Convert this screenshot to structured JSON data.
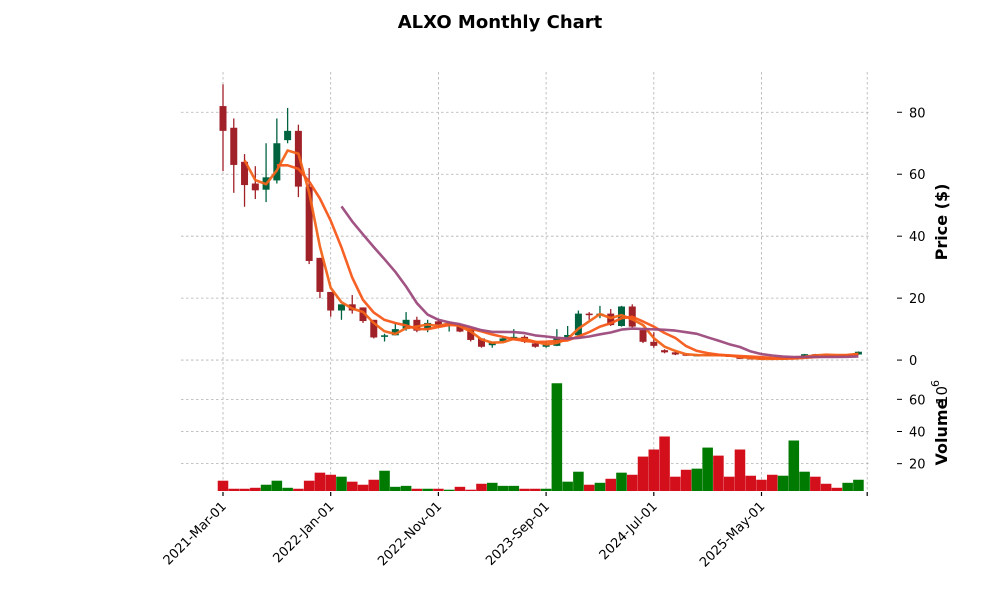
{
  "chart_data": {
    "type": "candlestick",
    "title": "ALXO Monthly Chart",
    "ylabel": "Price ($)",
    "volume_label": "Volume",
    "volume_scale_base": "10",
    "volume_scale_exp": "6",
    "start_month": "2021-03",
    "x_tick_labels": [
      "2021-Mar-01",
      "2022-Jan-01",
      "2022-Nov-01",
      "2023-Sep-01",
      "2024-Jul-01",
      "2025-May-01",
      ""
    ],
    "x_tick_indices": [
      0,
      10,
      20,
      30,
      40,
      50,
      60
    ],
    "price_ylim": [
      -3.2,
      93
    ],
    "price_yticks": [
      0,
      20,
      40,
      60,
      80
    ],
    "volume_ylim": [
      3,
      77
    ],
    "volume_yticks": [
      20,
      40,
      60
    ],
    "moving_averages": [
      {
        "window": 3,
        "color": "#f26419"
      },
      {
        "window": 6,
        "color": "#f7581a"
      },
      {
        "window": 12,
        "color": "#9c4a7c"
      }
    ],
    "colors": {
      "up": "#006340",
      "down": "#a02128",
      "vol_up": "#007a00",
      "vol_down": "#d40f1c"
    },
    "ohlc": [
      [
        82,
        89,
        61,
        74
      ],
      [
        75,
        78,
        54,
        63
      ],
      [
        64,
        66.5,
        49.5,
        56.5
      ],
      [
        57,
        62.6,
        52,
        54.8
      ],
      [
        55,
        70,
        51,
        59
      ],
      [
        58,
        78,
        57,
        70
      ],
      [
        71,
        81.4,
        70,
        74
      ],
      [
        74,
        76,
        52.6,
        56
      ],
      [
        56,
        62,
        31,
        32
      ],
      [
        33,
        33,
        20,
        22
      ],
      [
        22,
        22,
        14,
        16
      ],
      [
        16,
        18,
        13,
        18
      ],
      [
        18,
        21,
        15,
        16
      ],
      [
        17,
        17,
        12,
        12.6
      ],
      [
        13,
        13,
        7,
        7.3
      ],
      [
        7.5,
        8.5,
        6,
        8
      ],
      [
        8,
        12,
        8,
        10
      ],
      [
        10,
        15.5,
        9.5,
        13
      ],
      [
        13,
        14,
        9,
        9.5
      ],
      [
        10,
        13,
        9,
        12
      ],
      [
        12.5,
        13,
        11,
        11.5
      ],
      [
        11.6,
        12.5,
        9.2,
        12
      ],
      [
        11,
        11.5,
        9,
        9.2
      ],
      [
        10,
        10,
        6,
        6.5
      ],
      [
        7,
        7,
        4,
        4.3
      ],
      [
        4.8,
        6,
        4,
        6
      ],
      [
        6,
        7.5,
        5.8,
        7
      ],
      [
        7,
        10,
        6.5,
        7.5
      ],
      [
        7.5,
        8,
        5.5,
        5.9
      ],
      [
        5.4,
        6,
        4,
        4.3
      ],
      [
        4.3,
        6,
        4,
        5
      ],
      [
        4.6,
        10,
        4.5,
        7.3
      ],
      [
        7.3,
        11,
        7,
        8.1
      ],
      [
        8,
        16,
        8,
        15
      ],
      [
        15,
        15.5,
        13,
        14.5
      ],
      [
        14.5,
        17.5,
        13.5,
        15
      ],
      [
        15,
        16.5,
        11,
        11.3
      ],
      [
        11,
        17.5,
        10.8,
        17.3
      ],
      [
        17.3,
        18,
        10.5,
        10.8
      ],
      [
        9.7,
        10,
        5.5,
        5.9
      ],
      [
        5.9,
        9,
        4,
        4.6
      ],
      [
        3.2,
        3.5,
        2.2,
        2.5
      ],
      [
        2.5,
        2.7,
        1.6,
        1.8
      ],
      [
        1.9,
        2.1,
        1.3,
        1.4
      ],
      [
        1.4,
        1.8,
        1.3,
        1.6
      ],
      [
        1.6,
        1.9,
        1.5,
        1.7
      ],
      [
        1.7,
        1.8,
        1.3,
        1.4
      ],
      [
        1.4,
        1.5,
        1.1,
        1.2
      ],
      [
        1.1,
        1.3,
        0.3,
        0.4
      ],
      [
        0.6,
        0.7,
        0.3,
        0.4
      ],
      [
        0.5,
        0.6,
        0.3,
        0.4
      ],
      [
        0.5,
        0.6,
        0.3,
        0.4
      ],
      [
        0.4,
        0.6,
        0.3,
        0.5
      ],
      [
        0.5,
        1,
        0.4,
        0.9
      ],
      [
        0.9,
        2,
        0.8,
        1.9
      ],
      [
        1.9,
        2,
        1.6,
        1.7
      ],
      [
        1.8,
        1.9,
        1.5,
        1.6
      ],
      [
        1.7,
        1.8,
        1.5,
        1.6
      ],
      [
        1.6,
        1.9,
        1.5,
        1.8
      ],
      [
        1.8,
        2.8,
        1.7,
        2.7
      ]
    ],
    "volume": [
      9.4,
      4.4,
      4.4,
      5,
      6.9,
      9.4,
      5,
      4.4,
      9.4,
      14.4,
      13.1,
      11.9,
      8.8,
      6.9,
      10,
      15.6,
      5.6,
      6.2,
      4.4,
      4.4,
      4.4,
      3.8,
      5.6,
      3.8,
      7.5,
      8.1,
      6.2,
      6.2,
      4.4,
      4.4,
      4.4,
      70,
      8.8,
      15,
      6.9,
      8.1,
      10.6,
      14.4,
      13.1,
      24.4,
      28.8,
      36.9,
      11.9,
      16.2,
      16.9,
      30,
      25,
      11.9,
      28.8,
      12.5,
      10,
      13.1,
      12.5,
      34.4,
      15,
      11.9,
      7.5,
      5,
      8.1,
      10
    ]
  }
}
